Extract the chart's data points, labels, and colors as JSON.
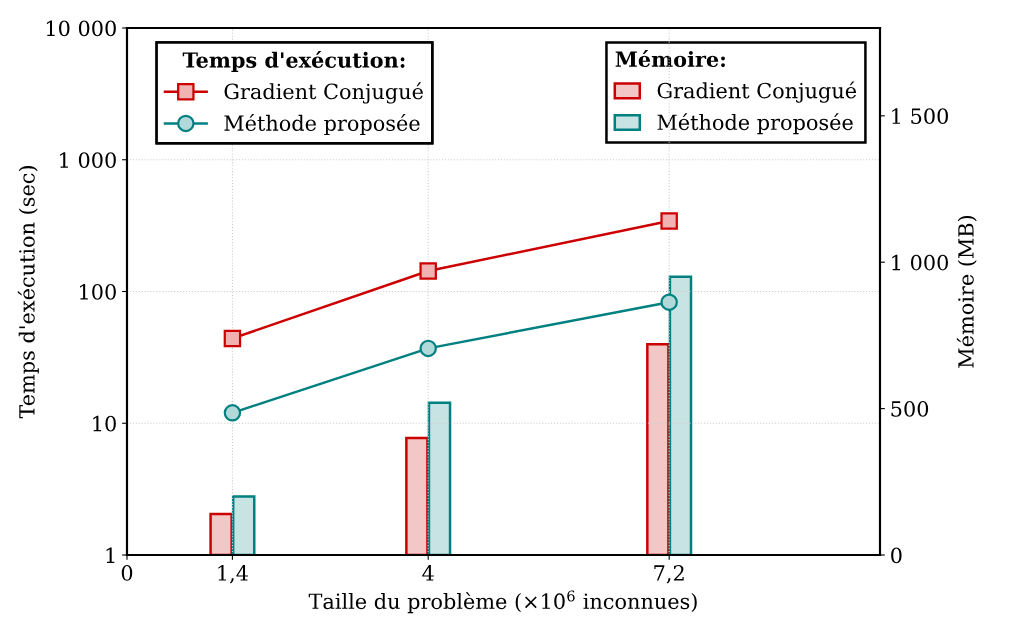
{
  "chart_data": {
    "type": "line",
    "xlabel": "Taille du problème (×10$^{6}$ inconnues)",
    "ylabel": "Temps d'exécution (sec)",
    "y2label": "Mémoire (MB)",
    "legend_title": "Temps d'exécution:",
    "annotations": [
      "Mémoire:"
    ],
    "x": [
      1.4,
      4,
      7.2
    ],
    "series": [
      {
        "name": "Gradient Conjugué",
        "color": "#cc0000",
        "values": [
          44,
          143,
          343
        ],
        "marker": "square"
      },
      {
        "name": "Méthode proposée",
        "color": "#008080",
        "values": [
          12,
          37,
          83
        ],
        "marker": "circle"
      },
      {
        "name": "Gradient Conjugué",
        "color": "#cc0000",
        "values": [
          140,
          400,
          720
        ],
        "type": "bar",
        "axis": "y2"
      },
      {
        "name": "Méthode proposée",
        "color": "#008080",
        "values": [
          200,
          520,
          950
        ],
        "type": "bar",
        "axis": "y2"
      }
    ],
    "log": "y",
    "xlim": [
      0,
      10
    ],
    "xticks": [
      0,
      {
        "value": 1.4,
        "label": "1,4"
      },
      4,
      {
        "value": 7.2,
        "label": "7,2"
      }
    ],
    "ylim": [
      1,
      10000
    ],
    "yticks": [
      1,
      10,
      100,
      {
        "value": 1000,
        "label": "1 000"
      },
      {
        "value": 10000,
        "label": "10 000"
      }
    ],
    "y2lim": [
      0,
      1800
    ],
    "y2ticks": [
      0,
      500,
      {
        "value": 1000,
        "label": "1 000"
      },
      {
        "value": 1500,
        "label": "1 500"
      }
    ],
    "grid": true,
    "legend": "top"
  }
}
